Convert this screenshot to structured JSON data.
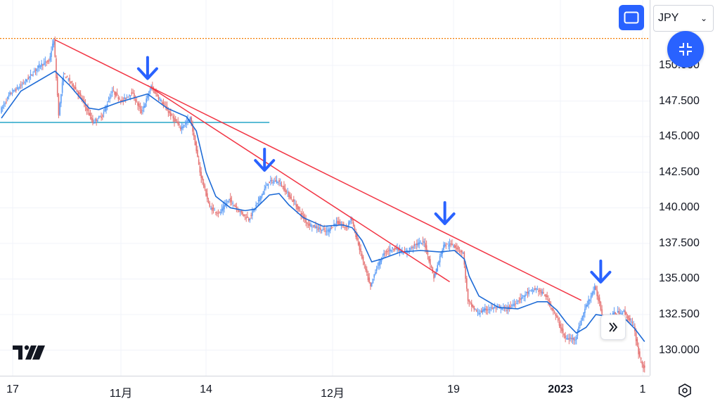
{
  "currency": {
    "label": "JPY"
  },
  "price_axis": {
    "ticks": [
      "150.000",
      "147.500",
      "145.000",
      "142.500",
      "140.000",
      "137.500",
      "135.000",
      "132.500",
      "130.000"
    ]
  },
  "time_axis": {
    "ticks": [
      {
        "label": "17",
        "bold": false
      },
      {
        "label": "11月",
        "bold": false
      },
      {
        "label": "14",
        "bold": false
      },
      {
        "label": "12月",
        "bold": false
      },
      {
        "label": "19",
        "bold": false
      },
      {
        "label": "2023",
        "bold": true
      },
      {
        "label": "1",
        "bold": false
      }
    ]
  },
  "colors": {
    "up": "#26a69a",
    "down": "#ef5350",
    "candle_blue": "#5b9cf6",
    "candle_red": "#e57373",
    "ma": "#1e6bd6",
    "trendline": "#f23645",
    "support": "#26a6c9",
    "dotted": "#f57c00",
    "arrow": "#2962ff",
    "accent": "#2962ff"
  },
  "icons": {
    "fullscreen": "fullscreen-icon",
    "collapse": "collapse-icon",
    "scroll": "double-chevron-right-icon",
    "settings": "settings-icon",
    "logo": "tradingview-logo"
  },
  "chart_data": {
    "type": "candlestick",
    "title": "",
    "xlabel": "",
    "ylabel": "",
    "ylim": [
      128.2,
      154.6
    ],
    "y_ticks": [
      130.0,
      132.5,
      135.0,
      137.5,
      140.0,
      142.5,
      145.0,
      147.5,
      150.0
    ],
    "x_tick_labels": [
      "17",
      "11月",
      "14",
      "12月",
      "19",
      "2023",
      "1"
    ],
    "price_path": [
      [
        0,
        146.8
      ],
      [
        2,
        148.0
      ],
      [
        4,
        148.5
      ],
      [
        6,
        149.2
      ],
      [
        8,
        150.0
      ],
      [
        10,
        150.3
      ],
      [
        11,
        151.8
      ],
      [
        12,
        146.6
      ],
      [
        13,
        149.4
      ],
      [
        15,
        148.6
      ],
      [
        17,
        147.5
      ],
      [
        19,
        146.0
      ],
      [
        21,
        146.5
      ],
      [
        23,
        148.2
      ],
      [
        25,
        147.5
      ],
      [
        27,
        148.1
      ],
      [
        29,
        146.7
      ],
      [
        31,
        148.5
      ],
      [
        33,
        147.5
      ],
      [
        35,
        146.5
      ],
      [
        37,
        145.6
      ],
      [
        39,
        146.3
      ],
      [
        40,
        144.5
      ],
      [
        41,
        142.5
      ],
      [
        43,
        140.0
      ],
      [
        45,
        139.6
      ],
      [
        47,
        140.6
      ],
      [
        49,
        139.8
      ],
      [
        51,
        139.2
      ],
      [
        53,
        140.5
      ],
      [
        55,
        141.8
      ],
      [
        57,
        141.9
      ],
      [
        59,
        141.0
      ],
      [
        61,
        140.0
      ],
      [
        63,
        138.9
      ],
      [
        65,
        138.6
      ],
      [
        67,
        138.3
      ],
      [
        69,
        139.0
      ],
      [
        71,
        138.6
      ],
      [
        72,
        139.3
      ],
      [
        74,
        136.8
      ],
      [
        76,
        134.4
      ],
      [
        77,
        135.6
      ],
      [
        79,
        136.9
      ],
      [
        81,
        137.2
      ],
      [
        83,
        136.8
      ],
      [
        85,
        137.4
      ],
      [
        87,
        137.6
      ],
      [
        89,
        135.1
      ],
      [
        91,
        137.4
      ],
      [
        93,
        137.4
      ],
      [
        95,
        136.8
      ],
      [
        96,
        133.4
      ],
      [
        98,
        132.6
      ],
      [
        100,
        132.9
      ],
      [
        102,
        133.0
      ],
      [
        104,
        132.9
      ],
      [
        106,
        133.4
      ],
      [
        108,
        134.0
      ],
      [
        110,
        134.3
      ],
      [
        112,
        133.8
      ],
      [
        114,
        132.4
      ],
      [
        116,
        130.8
      ],
      [
        118,
        130.8
      ],
      [
        120,
        132.9
      ],
      [
        122,
        134.4
      ],
      [
        123,
        133.3
      ],
      [
        124,
        131.8
      ],
      [
        126,
        132.6
      ],
      [
        128,
        132.7
      ],
      [
        130,
        131.7
      ],
      [
        131,
        129.8
      ],
      [
        132,
        128.8
      ]
    ],
    "moving_average": [
      [
        0,
        146.3
      ],
      [
        4,
        148.2
      ],
      [
        11,
        149.6
      ],
      [
        14,
        148.6
      ],
      [
        18,
        147.0
      ],
      [
        20,
        146.9
      ],
      [
        24,
        147.4
      ],
      [
        30,
        148.0
      ],
      [
        34,
        147.0
      ],
      [
        38,
        146.4
      ],
      [
        40,
        145.4
      ],
      [
        42,
        142.5
      ],
      [
        44,
        140.8
      ],
      [
        47,
        140.0
      ],
      [
        50,
        139.8
      ],
      [
        52,
        139.9
      ],
      [
        55,
        140.9
      ],
      [
        57,
        141.0
      ],
      [
        59,
        140.2
      ],
      [
        62,
        139.3
      ],
      [
        66,
        138.7
      ],
      [
        70,
        138.8
      ],
      [
        72,
        138.6
      ],
      [
        74,
        137.7
      ],
      [
        76,
        136.2
      ],
      [
        78,
        136.4
      ],
      [
        82,
        136.9
      ],
      [
        86,
        137.0
      ],
      [
        90,
        136.9
      ],
      [
        93,
        137.0
      ],
      [
        95,
        136.4
      ],
      [
        96,
        135.2
      ],
      [
        98,
        133.8
      ],
      [
        102,
        133.0
      ],
      [
        106,
        132.9
      ],
      [
        110,
        133.4
      ],
      [
        112,
        133.4
      ],
      [
        114,
        132.8
      ],
      [
        116,
        131.9
      ],
      [
        118,
        131.2
      ],
      [
        120,
        131.6
      ],
      [
        122,
        132.5
      ],
      [
        124,
        132.4
      ],
      [
        126,
        132.2
      ],
      [
        128,
        132.2
      ],
      [
        130,
        131.5
      ],
      [
        132,
        130.6
      ]
    ],
    "trendlines": [
      {
        "from": [
          11,
          151.8
        ],
        "to": [
          119,
          133.5
        ]
      },
      {
        "from": [
          30,
          148.6
        ],
        "to": [
          92,
          134.8
        ]
      }
    ],
    "support_line": {
      "y": 146.0,
      "x_end": 55
    },
    "resistance_line": {
      "y": 151.9
    },
    "down_arrows_at_index": [
      30,
      54,
      91,
      123
    ]
  }
}
